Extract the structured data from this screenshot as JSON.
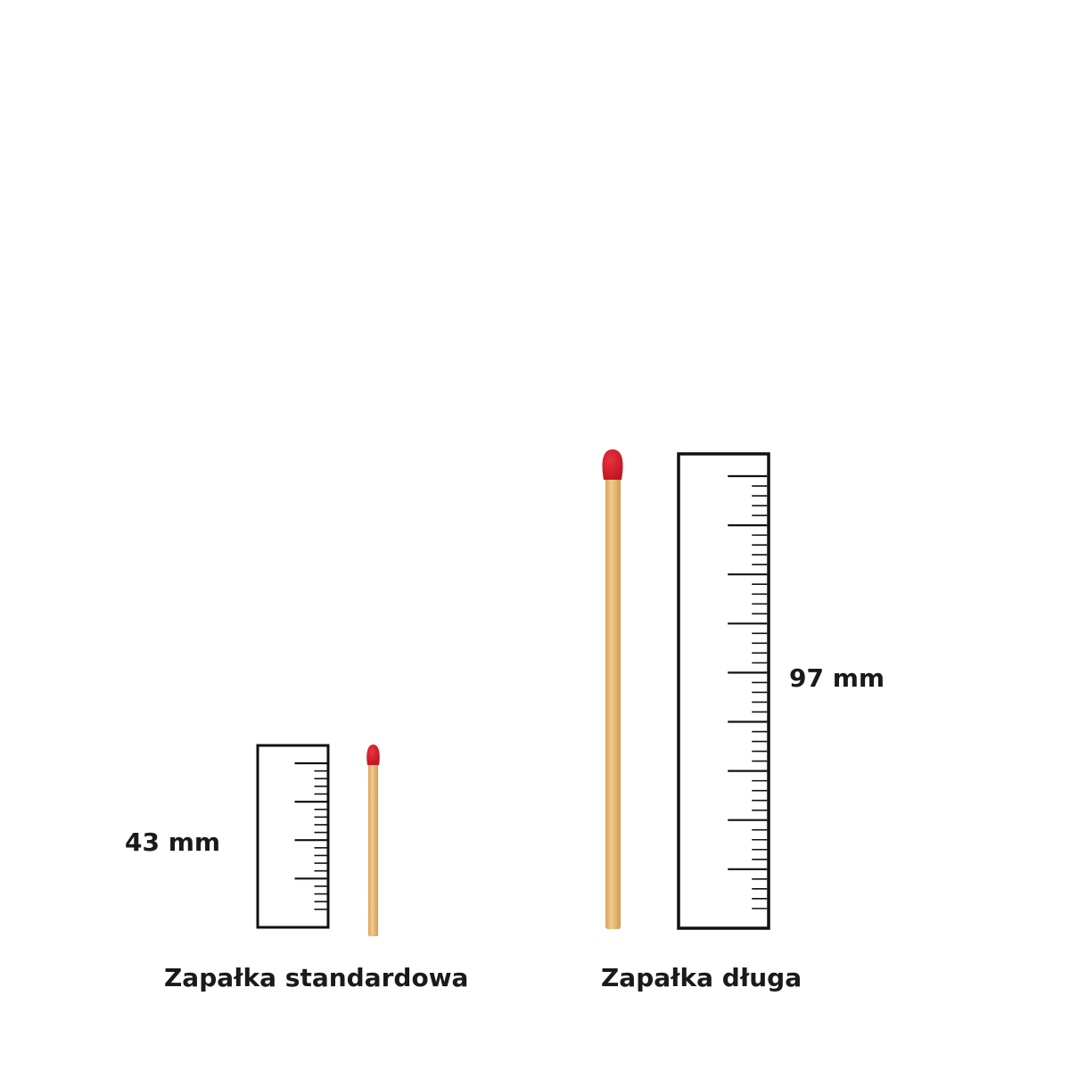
{
  "items": [
    {
      "name": "Zapałka standardowa",
      "length_label": "43 mm",
      "length_mm": 43
    },
    {
      "name": "Zapałka długa",
      "length_label": "97 mm",
      "length_mm": 97
    }
  ],
  "colors": {
    "match_head": "#d21f2b",
    "match_stick": "#e6b872",
    "ruler": "#111111"
  }
}
